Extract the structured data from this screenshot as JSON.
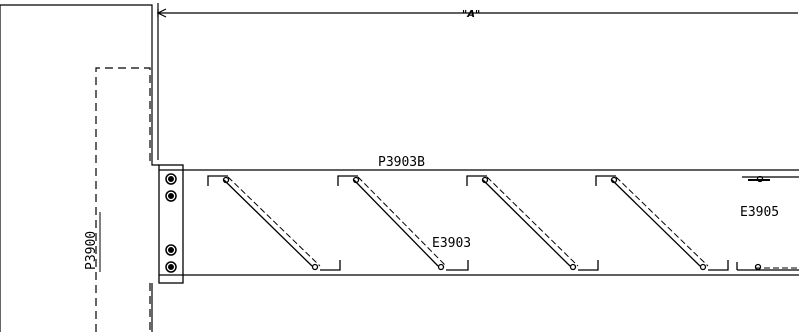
{
  "drawing": {
    "dimension_label": "\"A\"",
    "labels": {
      "beam": "P3903B",
      "column": "P3900",
      "brace_mid": "E3903",
      "brace_right": "E3905"
    },
    "icons": {
      "bolt": "bolt-symbol-icon",
      "clip": "angle-clip-icon",
      "brace": "diagonal-brace-icon"
    },
    "colors": {
      "line": "#000000",
      "background": "#ffffff"
    }
  }
}
